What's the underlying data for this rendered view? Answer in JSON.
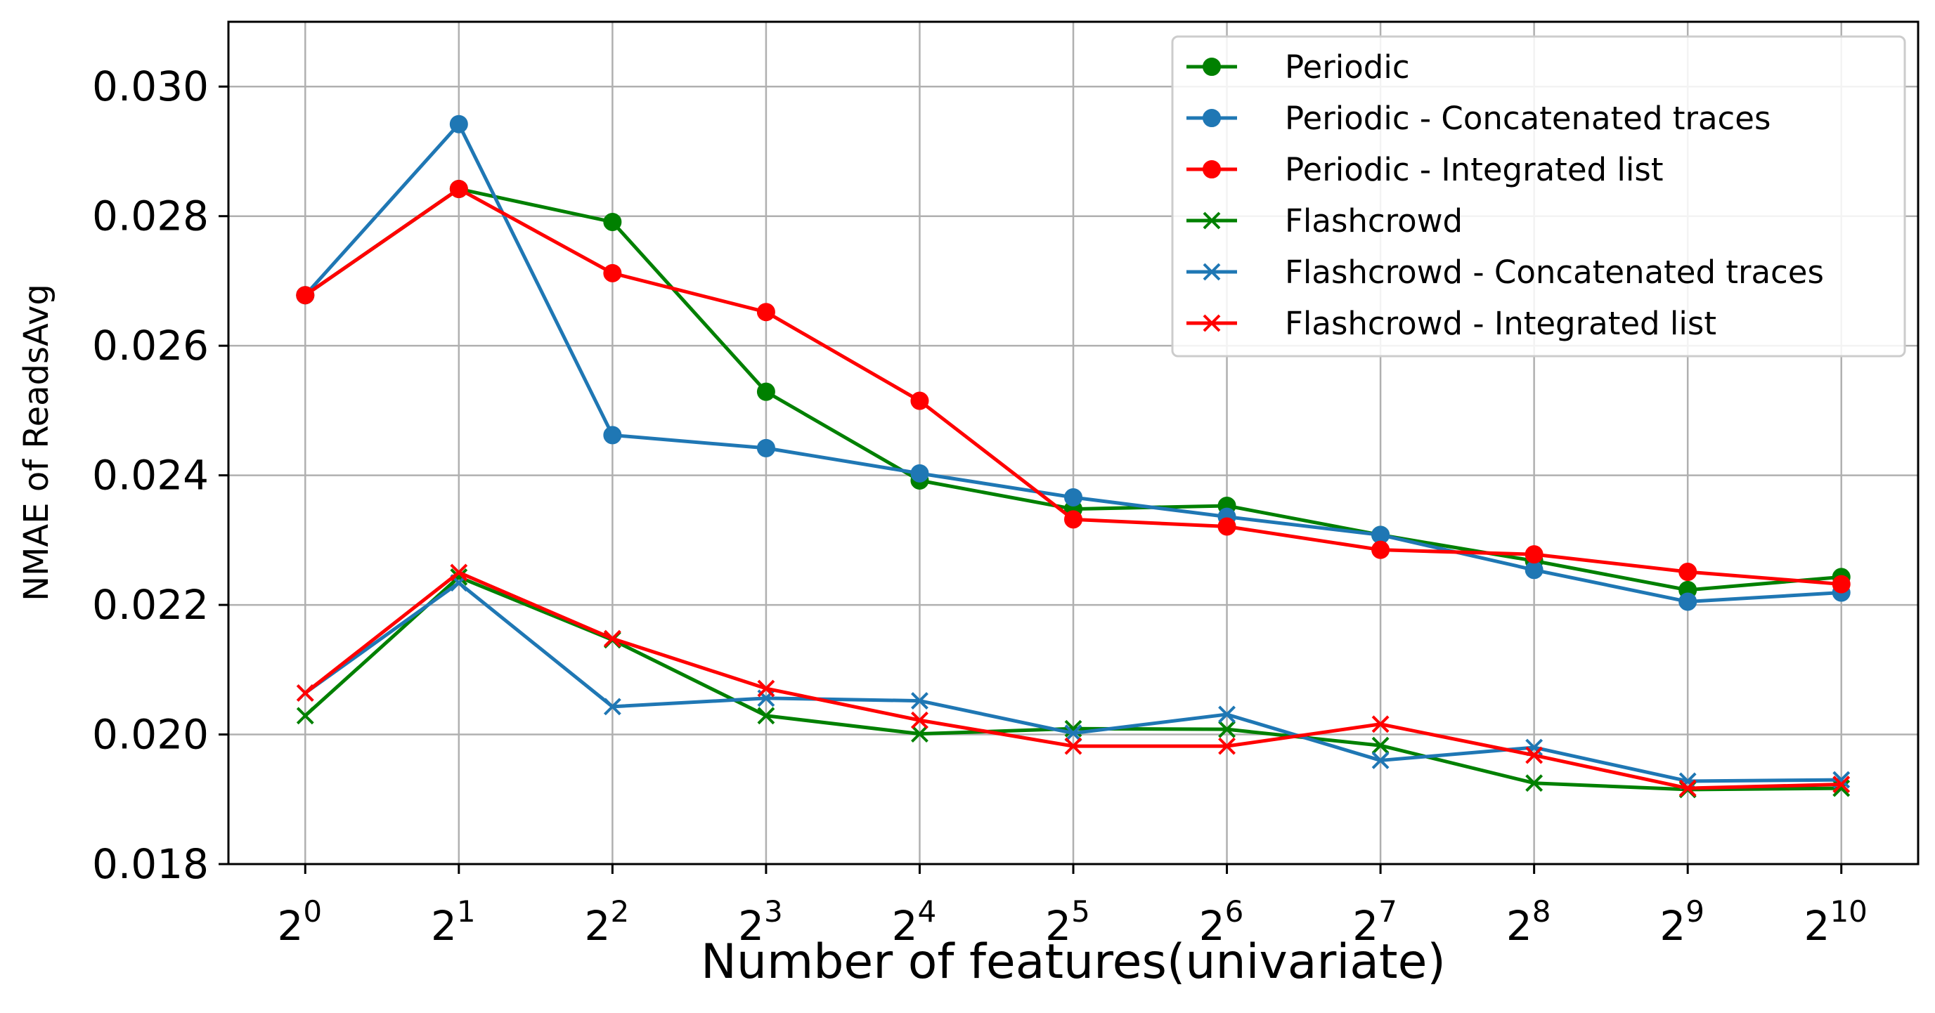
{
  "chart_data": {
    "type": "line",
    "xlabel": "Number of features(univariate)",
    "ylabel": "NMAE of ReadsAvg",
    "x_base": "2",
    "x": [
      0,
      1,
      2,
      3,
      4,
      5,
      6,
      7,
      8,
      9,
      10
    ],
    "x_ticks": [
      "0",
      "1",
      "2",
      "3",
      "4",
      "5",
      "6",
      "7",
      "8",
      "9",
      "10"
    ],
    "xlim": [
      -0.5,
      10.5
    ],
    "ylim": [
      0.018,
      0.031
    ],
    "y_ticks": [
      "0.018",
      "0.020",
      "0.022",
      "0.024",
      "0.026",
      "0.028",
      "0.030"
    ],
    "grid": true,
    "legend_position": "top-right",
    "series": [
      {
        "name": "Periodic",
        "color": "#008000",
        "marker": "circle",
        "values": [
          0.02678,
          0.02842,
          0.02791,
          0.02529,
          0.02392,
          0.02348,
          0.02353,
          0.02308,
          0.02268,
          0.02223,
          0.02243
        ]
      },
      {
        "name": "Periodic - Concatenated traces",
        "color": "#1f77b4",
        "marker": "circle",
        "values": [
          0.02678,
          0.02942,
          0.02462,
          0.02442,
          0.02403,
          0.02366,
          0.02336,
          0.02308,
          0.02254,
          0.02205,
          0.02219
        ]
      },
      {
        "name": "Periodic - Integrated list",
        "color": "#ff0000",
        "marker": "circle",
        "values": [
          0.02678,
          0.02842,
          0.02712,
          0.02652,
          0.02515,
          0.02332,
          0.02321,
          0.02285,
          0.02278,
          0.02251,
          0.02232
        ]
      },
      {
        "name": "Flashcrowd",
        "color": "#008000",
        "marker": "x",
        "values": [
          0.02029,
          0.02243,
          0.02146,
          0.02029,
          0.02001,
          0.02009,
          0.02008,
          0.01983,
          0.01925,
          0.01915,
          0.01917
        ]
      },
      {
        "name": "Flashcrowd - Concatenated traces",
        "color": "#1f77b4",
        "marker": "x",
        "values": [
          0.02064,
          0.02234,
          0.02043,
          0.02056,
          0.02052,
          0.02002,
          0.02031,
          0.0196,
          0.0198,
          0.01928,
          0.0193
        ]
      },
      {
        "name": "Flashcrowd - Integrated list",
        "color": "#ff0000",
        "marker": "x",
        "values": [
          0.02064,
          0.0225,
          0.02148,
          0.02071,
          0.02022,
          0.01982,
          0.01982,
          0.02016,
          0.01968,
          0.01917,
          0.01923
        ]
      }
    ]
  }
}
